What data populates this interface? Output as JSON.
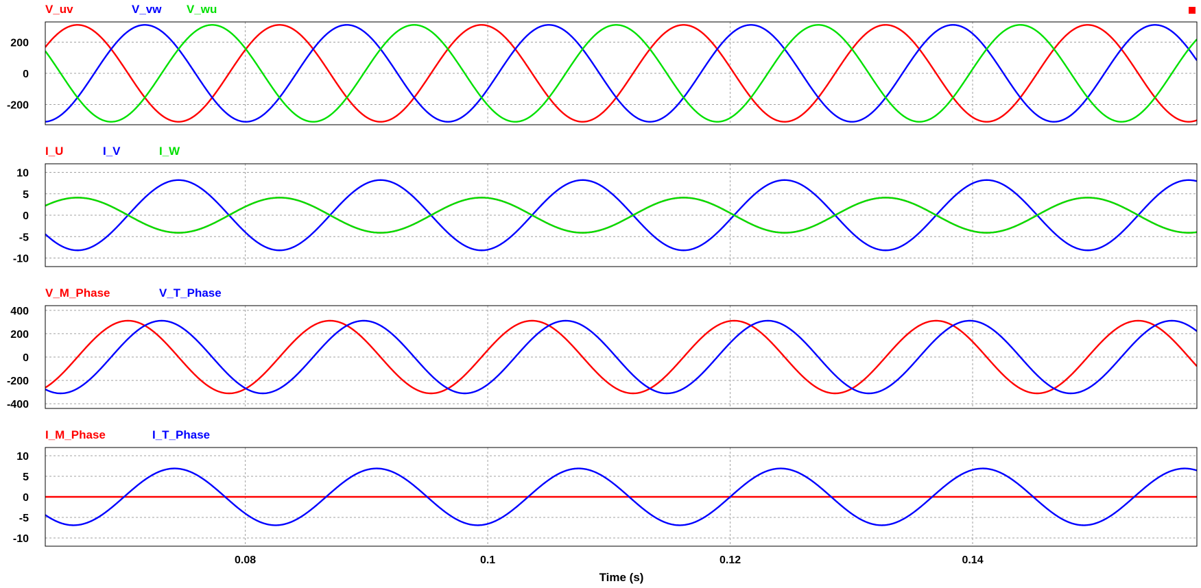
{
  "chart_data": {
    "type": "line",
    "xlabel": "Time (s)",
    "xlim": [
      0.0635,
      0.1585
    ],
    "xticks": [
      0.08,
      0.1,
      0.12,
      0.14
    ],
    "xtick_labels": [
      "0.08",
      "0.1",
      "0.12",
      "0.14"
    ],
    "grid": true,
    "legend": "top-left",
    "corner_marker_color": "#ff0000",
    "panels": [
      {
        "ylim": [
          -330,
          330
        ],
        "yticks": [
          200,
          0,
          -200
        ],
        "ytick_labels": [
          "200",
          "0",
          "-200"
        ],
        "series": [
          {
            "name": "V_uv",
            "color": "#ff0000",
            "amplitude": 311,
            "frequency_hz": 60,
            "phase_deg": 101
          },
          {
            "name": "V_vw",
            "color": "#0000ff",
            "amplitude": 311,
            "frequency_hz": 60,
            "phase_deg": -19
          },
          {
            "name": "V_wu",
            "color": "#00e000",
            "amplitude": 311,
            "frequency_hz": 60,
            "phase_deg": 221
          }
        ]
      },
      {
        "ylim": [
          -12,
          12
        ],
        "yticks": [
          10,
          5,
          0,
          -5,
          -10
        ],
        "ytick_labels": [
          "10",
          "5",
          "0",
          "-5",
          "-10"
        ],
        "series": [
          {
            "name": "I_U",
            "color": "#ff0000",
            "amplitude": 4.1,
            "frequency_hz": 60,
            "phase_deg": 101
          },
          {
            "name": "I_V",
            "color": "#0000ff",
            "amplitude": 8.2,
            "frequency_hz": 60,
            "phase_deg": -79
          },
          {
            "name": "I_W",
            "color": "#00e000",
            "amplitude": 4.1,
            "frequency_hz": 60,
            "phase_deg": 101
          }
        ]
      },
      {
        "ylim": [
          -440,
          440
        ],
        "yticks": [
          400,
          200,
          0,
          -200,
          -400
        ],
        "ytick_labels": [
          "400",
          "200",
          "0",
          "-200",
          "-400"
        ],
        "series": [
          {
            "name": "V_M_Phase",
            "color": "#ff0000",
            "amplitude": 311,
            "frequency_hz": 60,
            "phase_deg": 11
          },
          {
            "name": "V_T_Phase",
            "color": "#0000ff",
            "amplitude": 311,
            "frequency_hz": 60,
            "phase_deg": -49
          }
        ]
      },
      {
        "ylim": [
          -12,
          12
        ],
        "yticks": [
          10,
          5,
          0,
          -5,
          -10
        ],
        "ytick_labels": [
          "10",
          "5",
          "0",
          "-5",
          "-10"
        ],
        "series": [
          {
            "name": "I_M_Phase",
            "color": "#ff0000",
            "amplitude": 0,
            "frequency_hz": 60,
            "phase_deg": 0
          },
          {
            "name": "I_T_Phase",
            "color": "#0000ff",
            "amplitude": 6.9,
            "frequency_hz": 60,
            "phase_deg": -72
          }
        ]
      }
    ]
  }
}
